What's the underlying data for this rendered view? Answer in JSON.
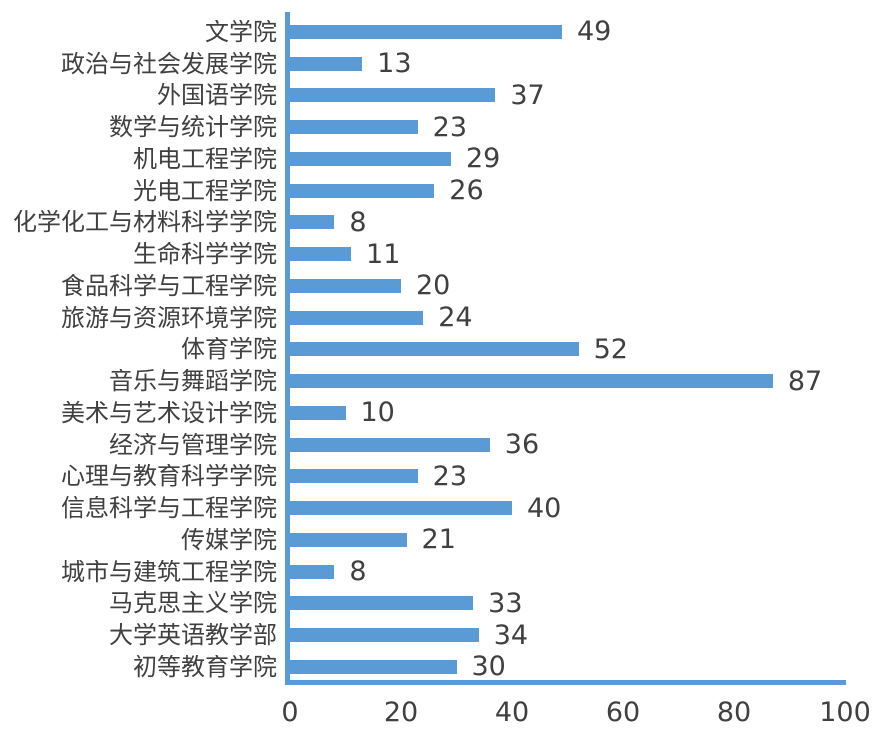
{
  "chart_data": {
    "type": "bar",
    "orientation": "horizontal",
    "title": "",
    "xlabel": "",
    "ylabel": "",
    "grid": false,
    "legend": "none",
    "categories": [
      "文学院",
      "政治与社会发展学院",
      "外国语学院",
      "数学与统计学院",
      "机电工程学院",
      "光电工程学院",
      "化学化工与材料科学学院",
      "生命科学学院",
      "食品科学与工程学院",
      "旅游与资源环境学院",
      "体育学院",
      "音乐与舞蹈学院",
      "美术与艺术设计学院",
      "经济与管理学院",
      "心理与教育科学学院",
      "信息科学与工程学院",
      "传媒学院",
      "城市与建筑工程学院",
      "马克思主义学院",
      "大学英语教学部",
      "初等教育学院"
    ],
    "values": [
      49,
      13,
      37,
      23,
      29,
      26,
      8,
      11,
      20,
      24,
      52,
      87,
      10,
      36,
      23,
      40,
      21,
      8,
      33,
      34,
      30
    ],
    "value_labels": [
      "49",
      "13",
      "37",
      "23",
      "29",
      "26",
      "8",
      "11",
      "20",
      "24",
      "52",
      "87",
      "10",
      "36",
      "23",
      "40",
      "21",
      "8",
      "33",
      "34",
      "30"
    ],
    "xlim": [
      0,
      100
    ],
    "x_ticks": [
      0,
      20,
      40,
      60,
      80,
      100
    ],
    "x_tick_labels": [
      "0",
      "20",
      "40",
      "60",
      "80",
      "100"
    ],
    "bar_color": "#5B9BD5",
    "axis_color": "#5B9BD5",
    "text_color": "#404040",
    "background_color": "#FFFFFF"
  }
}
